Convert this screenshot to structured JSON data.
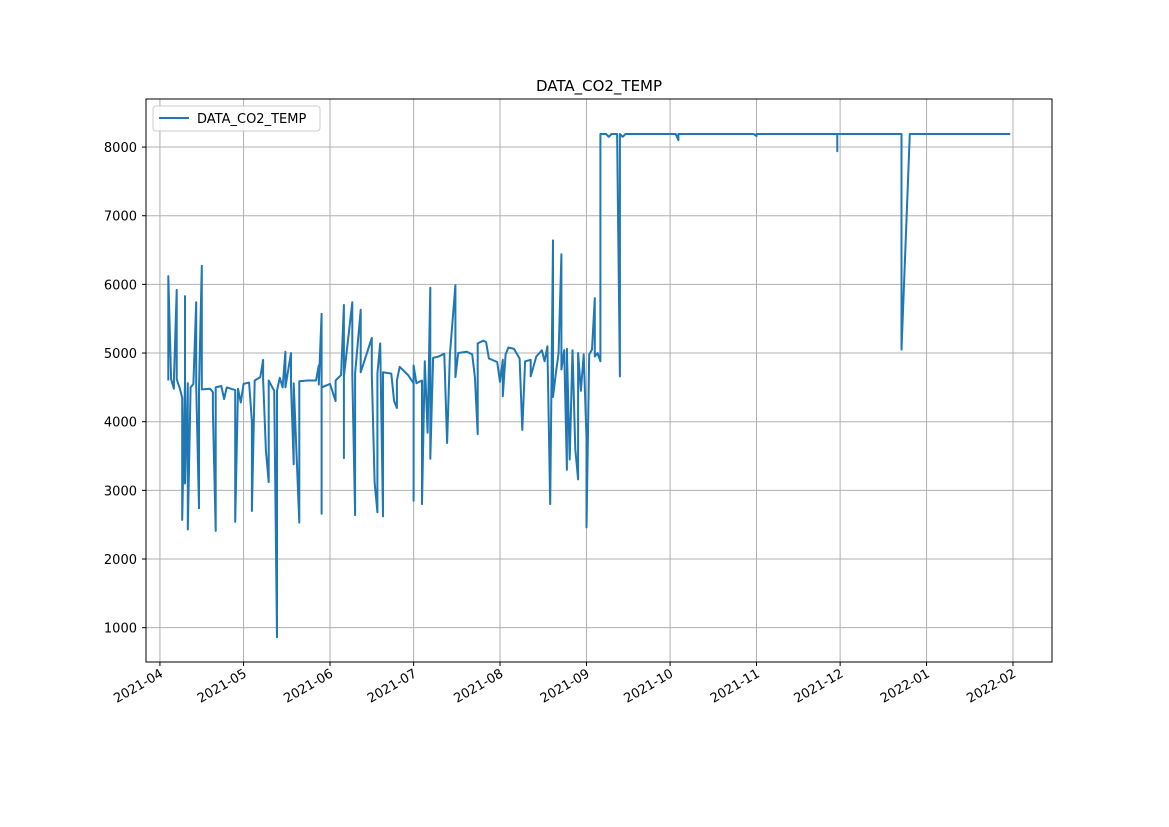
{
  "chart_data": {
    "type": "line",
    "title": "DATA_CO2_TEMP",
    "xlabel": "",
    "ylabel": "",
    "x_axis_type": "date",
    "xlim": [
      "2021-03-27",
      "2022-02-15"
    ],
    "ylim": [
      500,
      8700
    ],
    "xticks": [
      "2021-04-01",
      "2021-05-01",
      "2021-06-01",
      "2021-07-01",
      "2021-08-01",
      "2021-09-01",
      "2021-10-01",
      "2021-11-01",
      "2021-12-01",
      "2022-01-01",
      "2022-02-01"
    ],
    "xtick_labels": [
      "2021-04",
      "2021-05",
      "2021-06",
      "2021-07",
      "2021-08",
      "2021-09",
      "2021-10",
      "2021-11",
      "2021-12",
      "2022-01",
      "2022-02"
    ],
    "yticks": [
      1000,
      2000,
      3000,
      4000,
      5000,
      6000,
      7000,
      8000
    ],
    "ytick_labels": [
      "1000",
      "2000",
      "3000",
      "4000",
      "5000",
      "6000",
      "7000",
      "8000"
    ],
    "grid": true,
    "legend_position": "top-left",
    "series": [
      {
        "name": "DATA_CO2_TEMP",
        "color": "#1f77b4",
        "points": [
          [
            "2021-04-04",
            4600
          ],
          [
            "2021-04-04",
            6120
          ],
          [
            "2021-04-05",
            4620
          ],
          [
            "2021-04-06",
            4480
          ],
          [
            "2021-04-06",
            4600
          ],
          [
            "2021-04-07",
            5920
          ],
          [
            "2021-04-07",
            4620
          ],
          [
            "2021-04-08",
            4500
          ],
          [
            "2021-04-09",
            4350
          ],
          [
            "2021-04-09",
            2570
          ],
          [
            "2021-04-10",
            4580
          ],
          [
            "2021-04-10",
            5830
          ],
          [
            "2021-04-10",
            3100
          ],
          [
            "2021-04-11",
            4560
          ],
          [
            "2021-04-11",
            2430
          ],
          [
            "2021-04-12",
            4500
          ],
          [
            "2021-04-13",
            4550
          ],
          [
            "2021-04-14",
            5740
          ],
          [
            "2021-04-14",
            4520
          ],
          [
            "2021-04-15",
            2740
          ],
          [
            "2021-04-15",
            4480
          ],
          [
            "2021-04-16",
            6270
          ],
          [
            "2021-04-16",
            4470
          ],
          [
            "2021-04-19",
            4480
          ],
          [
            "2021-04-20",
            4430
          ],
          [
            "2021-04-20",
            4140
          ],
          [
            "2021-04-21",
            2410
          ],
          [
            "2021-04-21",
            4500
          ],
          [
            "2021-04-23",
            4520
          ],
          [
            "2021-04-24",
            4330
          ],
          [
            "2021-04-25",
            4500
          ],
          [
            "2021-04-28",
            4460
          ],
          [
            "2021-04-28",
            2540
          ],
          [
            "2021-04-29",
            4480
          ],
          [
            "2021-04-30",
            4280
          ],
          [
            "2021-05-01",
            4550
          ],
          [
            "2021-05-02",
            4560
          ],
          [
            "2021-05-03",
            4570
          ],
          [
            "2021-05-04",
            4000
          ],
          [
            "2021-05-04",
            2700
          ],
          [
            "2021-05-05",
            4600
          ],
          [
            "2021-05-07",
            4650
          ],
          [
            "2021-05-08",
            4900
          ],
          [
            "2021-05-08",
            4620
          ],
          [
            "2021-05-09",
            3580
          ],
          [
            "2021-05-10",
            3120
          ],
          [
            "2021-05-10",
            4600
          ],
          [
            "2021-05-12",
            4450
          ],
          [
            "2021-05-13",
            860
          ],
          [
            "2021-05-13",
            4450
          ],
          [
            "2021-05-14",
            4640
          ],
          [
            "2021-05-15",
            4500
          ],
          [
            "2021-05-16",
            5020
          ],
          [
            "2021-05-16",
            4500
          ],
          [
            "2021-05-18",
            5000
          ],
          [
            "2021-05-18",
            4540
          ],
          [
            "2021-05-19",
            3380
          ],
          [
            "2021-05-19",
            4560
          ],
          [
            "2021-05-21",
            2530
          ],
          [
            "2021-05-21",
            4590
          ],
          [
            "2021-05-24",
            4600
          ],
          [
            "2021-05-27",
            4600
          ],
          [
            "2021-05-28",
            4820
          ],
          [
            "2021-05-28",
            4540
          ],
          [
            "2021-05-29",
            5570
          ],
          [
            "2021-05-29",
            2660
          ],
          [
            "2021-05-29",
            4500
          ],
          [
            "2021-06-01",
            4550
          ],
          [
            "2021-06-03",
            4300
          ],
          [
            "2021-06-03",
            4600
          ],
          [
            "2021-06-05",
            4680
          ],
          [
            "2021-06-06",
            5700
          ],
          [
            "2021-06-06",
            3470
          ],
          [
            "2021-06-06",
            4660
          ],
          [
            "2021-06-09",
            5740
          ],
          [
            "2021-06-09",
            4680
          ],
          [
            "2021-06-10",
            2640
          ],
          [
            "2021-06-10",
            4700
          ],
          [
            "2021-06-12",
            5630
          ],
          [
            "2021-06-12",
            4720
          ],
          [
            "2021-06-16",
            5220
          ],
          [
            "2021-06-16",
            4700
          ],
          [
            "2021-06-17",
            3120
          ],
          [
            "2021-06-18",
            2680
          ],
          [
            "2021-06-18",
            4700
          ],
          [
            "2021-06-19",
            5140
          ],
          [
            "2021-06-20",
            2620
          ],
          [
            "2021-06-20",
            4720
          ],
          [
            "2021-06-23",
            4700
          ],
          [
            "2021-06-24",
            4300
          ],
          [
            "2021-06-25",
            4200
          ],
          [
            "2021-06-25",
            4600
          ],
          [
            "2021-06-26",
            4800
          ],
          [
            "2021-06-29",
            4680
          ],
          [
            "2021-07-01",
            4560
          ],
          [
            "2021-07-01",
            2850
          ],
          [
            "2021-07-01",
            4820
          ],
          [
            "2021-07-02",
            4560
          ],
          [
            "2021-07-04",
            4600
          ],
          [
            "2021-07-04",
            2800
          ],
          [
            "2021-07-05",
            4880
          ],
          [
            "2021-07-06",
            3840
          ],
          [
            "2021-07-07",
            5950
          ],
          [
            "2021-07-07",
            3460
          ],
          [
            "2021-07-08",
            4930
          ],
          [
            "2021-07-10",
            4950
          ],
          [
            "2021-07-12",
            4990
          ],
          [
            "2021-07-13",
            3690
          ],
          [
            "2021-07-14",
            4980
          ],
          [
            "2021-07-16",
            5990
          ],
          [
            "2021-07-16",
            4650
          ],
          [
            "2021-07-17",
            5000
          ],
          [
            "2021-07-20",
            5020
          ],
          [
            "2021-07-22",
            4980
          ],
          [
            "2021-07-23",
            4650
          ],
          [
            "2021-07-24",
            3820
          ],
          [
            "2021-07-24",
            5140
          ],
          [
            "2021-07-26",
            5180
          ],
          [
            "2021-07-27",
            5160
          ],
          [
            "2021-07-28",
            4920
          ],
          [
            "2021-07-31",
            4870
          ],
          [
            "2021-08-01",
            4580
          ],
          [
            "2021-08-02",
            4900
          ],
          [
            "2021-08-02",
            4370
          ],
          [
            "2021-08-03",
            4980
          ],
          [
            "2021-08-04",
            5080
          ],
          [
            "2021-08-06",
            5060
          ],
          [
            "2021-08-08",
            4920
          ],
          [
            "2021-08-09",
            3880
          ],
          [
            "2021-08-10",
            4880
          ],
          [
            "2021-08-12",
            4900
          ],
          [
            "2021-08-12",
            4660
          ],
          [
            "2021-08-14",
            4950
          ],
          [
            "2021-08-16",
            5040
          ],
          [
            "2021-08-17",
            4880
          ],
          [
            "2021-08-18",
            5100
          ],
          [
            "2021-08-19",
            2800
          ],
          [
            "2021-08-20",
            6640
          ],
          [
            "2021-08-20",
            4360
          ],
          [
            "2021-08-21",
            4700
          ],
          [
            "2021-08-22",
            5000
          ],
          [
            "2021-08-23",
            6440
          ],
          [
            "2021-08-23",
            4760
          ],
          [
            "2021-08-24",
            5040
          ],
          [
            "2021-08-25",
            3300
          ],
          [
            "2021-08-25",
            5060
          ],
          [
            "2021-08-26",
            3450
          ],
          [
            "2021-08-27",
            5040
          ],
          [
            "2021-08-28",
            3600
          ],
          [
            "2021-08-29",
            3160
          ],
          [
            "2021-08-29",
            5000
          ],
          [
            "2021-08-30",
            4450
          ],
          [
            "2021-08-31",
            4980
          ],
          [
            "2021-09-01",
            3760
          ],
          [
            "2021-09-01",
            2460
          ],
          [
            "2021-09-02",
            4980
          ],
          [
            "2021-09-03",
            5050
          ],
          [
            "2021-09-04",
            5800
          ],
          [
            "2021-09-04",
            4950
          ],
          [
            "2021-09-05",
            5000
          ],
          [
            "2021-09-06",
            4880
          ],
          [
            "2021-09-06",
            8190
          ],
          [
            "2021-09-07",
            8190
          ],
          [
            "2021-09-08",
            8190
          ],
          [
            "2021-09-09",
            8150
          ],
          [
            "2021-09-10",
            8190
          ],
          [
            "2021-09-12",
            8190
          ],
          [
            "2021-09-13",
            4660
          ],
          [
            "2021-09-13",
            8190
          ],
          [
            "2021-09-14",
            8150
          ],
          [
            "2021-09-15",
            8190
          ],
          [
            "2021-10-03",
            8190
          ],
          [
            "2021-10-04",
            8100
          ],
          [
            "2021-10-04",
            8190
          ],
          [
            "2021-10-31",
            8190
          ],
          [
            "2021-11-01",
            8160
          ],
          [
            "2021-11-01",
            8190
          ],
          [
            "2021-11-30",
            8190
          ],
          [
            "2021-11-30",
            7940
          ],
          [
            "2021-11-30",
            8190
          ],
          [
            "2021-12-23",
            8190
          ],
          [
            "2021-12-23",
            5050
          ],
          [
            "2021-12-26",
            8190
          ],
          [
            "2022-01-31",
            8190
          ]
        ]
      }
    ]
  }
}
